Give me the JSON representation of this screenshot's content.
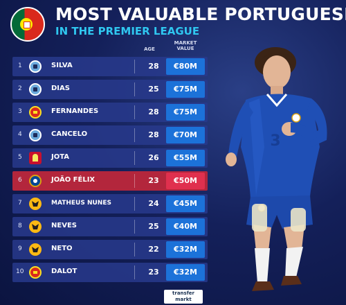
{
  "header": {
    "title": "MOST VALUABLE PORTUGUESE",
    "subtitle": "IN THE PREMIER LEAGUE"
  },
  "columns": {
    "age": "AGE",
    "market_value_line1": "MARKET",
    "market_value_line2": "VALUE"
  },
  "rows": [
    {
      "rank": "1",
      "club": "manchester-city",
      "name": "SILVA",
      "age": "28",
      "value": "€80M"
    },
    {
      "rank": "2",
      "club": "manchester-city",
      "name": "DIAS",
      "age": "25",
      "value": "€75M"
    },
    {
      "rank": "3",
      "club": "manchester-united",
      "name": "FERNANDES",
      "age": "28",
      "value": "€75M"
    },
    {
      "rank": "4",
      "club": "manchester-city",
      "name": "CANCELO",
      "age": "28",
      "value": "€70M"
    },
    {
      "rank": "5",
      "club": "liverpool",
      "name": "JOTA",
      "age": "26",
      "value": "€55M"
    },
    {
      "rank": "6",
      "club": "chelsea",
      "name": "JOÃO FÉLIX",
      "age": "23",
      "value": "€50M"
    },
    {
      "rank": "7",
      "club": "wolves",
      "name": "MATHEUS NUNES",
      "age": "24",
      "value": "€45M"
    },
    {
      "rank": "8",
      "club": "wolves",
      "name": "NEVES",
      "age": "25",
      "value": "€40M"
    },
    {
      "rank": "9",
      "club": "wolves",
      "name": "NETO",
      "age": "22",
      "value": "€32M"
    },
    {
      "rank": "10",
      "club": "manchester-united",
      "name": "DALOT",
      "age": "23",
      "value": "€32M"
    }
  ],
  "logo": {
    "line1": "transfer",
    "line2": "markt"
  },
  "colors": {
    "background": "#14205a",
    "row": "#283a8c",
    "highlight_row": "#b3263c",
    "value_box": "#1c72d9",
    "subtitle": "#2fc7f0"
  }
}
